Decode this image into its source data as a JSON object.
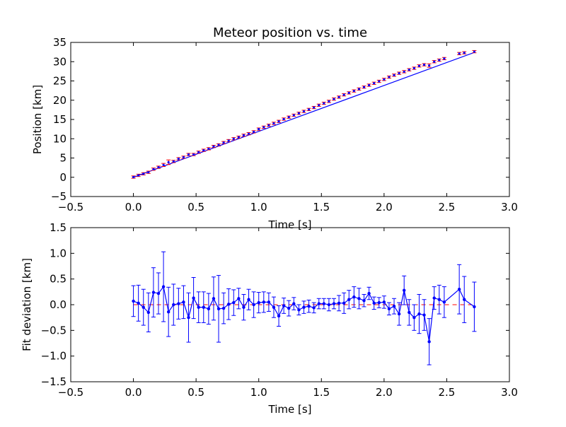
{
  "chart_data": [
    {
      "type": "scatter",
      "title": "Meteor position vs. time",
      "xlabel": "Time [s]",
      "ylabel": "Position [km]",
      "xlim": [
        -0.5,
        3.0
      ],
      "ylim": [
        -5,
        35
      ],
      "x_ticks": [
        "−0.5",
        "0.0",
        "0.5",
        "1.0",
        "1.5",
        "2.0",
        "2.5",
        "3.0"
      ],
      "y_ticks": [
        "−5",
        "0",
        "5",
        "10",
        "15",
        "20",
        "25",
        "30",
        "35"
      ],
      "grid": false,
      "legend": "none",
      "fit_line": {
        "x": [
          0.0,
          2.72
        ],
        "y": [
          0.0,
          32.4
        ],
        "color": "#0000ff"
      },
      "series": [
        {
          "color": "#ff0000",
          "marker_color": "#0000ff",
          "x": [
            0.0,
            0.04,
            0.08,
            0.12,
            0.16,
            0.2,
            0.24,
            0.28,
            0.32,
            0.36,
            0.4,
            0.44,
            0.48,
            0.52,
            0.56,
            0.6,
            0.64,
            0.68,
            0.72,
            0.76,
            0.8,
            0.84,
            0.88,
            0.92,
            0.96,
            1.0,
            1.04,
            1.08,
            1.12,
            1.16,
            1.2,
            1.24,
            1.28,
            1.32,
            1.36,
            1.4,
            1.44,
            1.48,
            1.52,
            1.56,
            1.6,
            1.64,
            1.68,
            1.72,
            1.76,
            1.8,
            1.84,
            1.88,
            1.92,
            1.96,
            2.0,
            2.04,
            2.08,
            2.12,
            2.16,
            2.2,
            2.24,
            2.28,
            2.32,
            2.36,
            2.4,
            2.44,
            2.48,
            2.6,
            2.64,
            2.72
          ],
          "y": [
            0.05,
            0.5,
            0.9,
            1.3,
            2.1,
            2.6,
            3.2,
            3.9,
            4.1,
            4.8,
            5.2,
            5.9,
            5.9,
            6.5,
            7.0,
            7.4,
            8.0,
            8.4,
            9.0,
            9.5,
            10.0,
            10.4,
            10.9,
            11.3,
            11.8,
            12.5,
            13.0,
            13.5,
            14.0,
            14.5,
            15.1,
            15.6,
            16.1,
            16.6,
            17.1,
            17.6,
            18.1,
            18.7,
            19.2,
            19.7,
            20.3,
            20.8,
            21.4,
            21.9,
            22.4,
            22.9,
            23.4,
            23.9,
            24.4,
            24.9,
            25.4,
            26.0,
            26.5,
            27.0,
            27.4,
            27.9,
            28.3,
            28.9,
            29.2,
            29.0,
            30.0,
            30.4,
            30.8,
            32.1,
            32.3,
            32.6
          ],
          "yerr": [
            0.3,
            0.3,
            0.3,
            0.3,
            0.3,
            0.3,
            0.4,
            0.6,
            0.3,
            0.3,
            0.3,
            0.3,
            0.3,
            0.3,
            0.3,
            0.3,
            0.3,
            0.3,
            0.3,
            0.3,
            0.3,
            0.3,
            0.3,
            0.3,
            0.3,
            0.3,
            0.3,
            0.3,
            0.3,
            0.3,
            0.3,
            0.3,
            0.3,
            0.3,
            0.3,
            0.3,
            0.3,
            0.3,
            0.3,
            0.3,
            0.3,
            0.3,
            0.3,
            0.3,
            0.3,
            0.3,
            0.3,
            0.3,
            0.3,
            0.3,
            0.3,
            0.3,
            0.3,
            0.3,
            0.3,
            0.3,
            0.3,
            0.3,
            0.3,
            0.45,
            0.3,
            0.3,
            0.3,
            0.3,
            0.3,
            0.3
          ]
        }
      ]
    },
    {
      "type": "line",
      "title": "",
      "xlabel": "Time [s]",
      "ylabel": "Fit deviation [km]",
      "xlim": [
        -0.5,
        3.0
      ],
      "ylim": [
        -1.5,
        1.5
      ],
      "x_ticks": [
        "−0.5",
        "0.0",
        "0.5",
        "1.0",
        "1.5",
        "2.0",
        "2.5",
        "3.0"
      ],
      "y_ticks": [
        "−1.5",
        "−1.0",
        "−0.5",
        "0.0",
        "0.5",
        "1.0",
        "1.5"
      ],
      "grid": false,
      "legend": "none",
      "zero_line": {
        "y": 0.0,
        "color": "#ff0000",
        "style": "dashed"
      },
      "series": [
        {
          "color": "#0000ff",
          "x": [
            0.0,
            0.04,
            0.08,
            0.12,
            0.16,
            0.2,
            0.24,
            0.28,
            0.32,
            0.36,
            0.4,
            0.44,
            0.48,
            0.52,
            0.56,
            0.6,
            0.64,
            0.68,
            0.72,
            0.76,
            0.8,
            0.84,
            0.88,
            0.92,
            0.96,
            1.0,
            1.04,
            1.08,
            1.12,
            1.16,
            1.2,
            1.24,
            1.28,
            1.32,
            1.36,
            1.4,
            1.44,
            1.48,
            1.52,
            1.56,
            1.6,
            1.64,
            1.68,
            1.72,
            1.76,
            1.8,
            1.84,
            1.88,
            1.92,
            1.96,
            2.0,
            2.04,
            2.08,
            2.12,
            2.16,
            2.2,
            2.24,
            2.28,
            2.32,
            2.36,
            2.4,
            2.44,
            2.48,
            2.6,
            2.64,
            2.72
          ],
          "y": [
            0.07,
            0.03,
            -0.05,
            -0.15,
            0.24,
            0.22,
            0.35,
            -0.14,
            0.0,
            0.02,
            0.05,
            -0.25,
            0.13,
            -0.05,
            -0.05,
            -0.08,
            0.12,
            -0.08,
            -0.07,
            0.01,
            0.04,
            0.12,
            -0.05,
            0.1,
            -0.0,
            0.04,
            0.05,
            0.05,
            -0.05,
            -0.22,
            -0.02,
            -0.07,
            0.02,
            -0.1,
            -0.05,
            -0.03,
            -0.06,
            0.02,
            0.02,
            0.0,
            0.02,
            0.03,
            0.03,
            0.1,
            0.15,
            0.12,
            0.08,
            0.22,
            0.03,
            0.04,
            0.05,
            -0.08,
            -0.03,
            -0.18,
            0.28,
            -0.15,
            -0.25,
            -0.18,
            -0.2,
            -0.72,
            0.13,
            0.1,
            0.05,
            0.3,
            0.1,
            -0.04
          ],
          "yerr": [
            0.3,
            0.35,
            0.35,
            0.38,
            0.48,
            0.4,
            0.68,
            0.48,
            0.4,
            0.3,
            0.32,
            0.48,
            0.4,
            0.3,
            0.3,
            0.3,
            0.42,
            0.65,
            0.3,
            0.3,
            0.25,
            0.2,
            0.25,
            0.2,
            0.25,
            0.2,
            0.2,
            0.18,
            0.2,
            0.2,
            0.15,
            0.15,
            0.12,
            0.1,
            0.12,
            0.12,
            0.1,
            0.1,
            0.1,
            0.12,
            0.1,
            0.15,
            0.2,
            0.18,
            0.2,
            0.2,
            0.12,
            0.12,
            0.12,
            0.1,
            0.12,
            0.12,
            0.15,
            0.22,
            0.28,
            0.25,
            0.25,
            0.38,
            0.3,
            0.45,
            0.22,
            0.28,
            0.3,
            0.48,
            0.45,
            0.48
          ]
        }
      ]
    }
  ]
}
